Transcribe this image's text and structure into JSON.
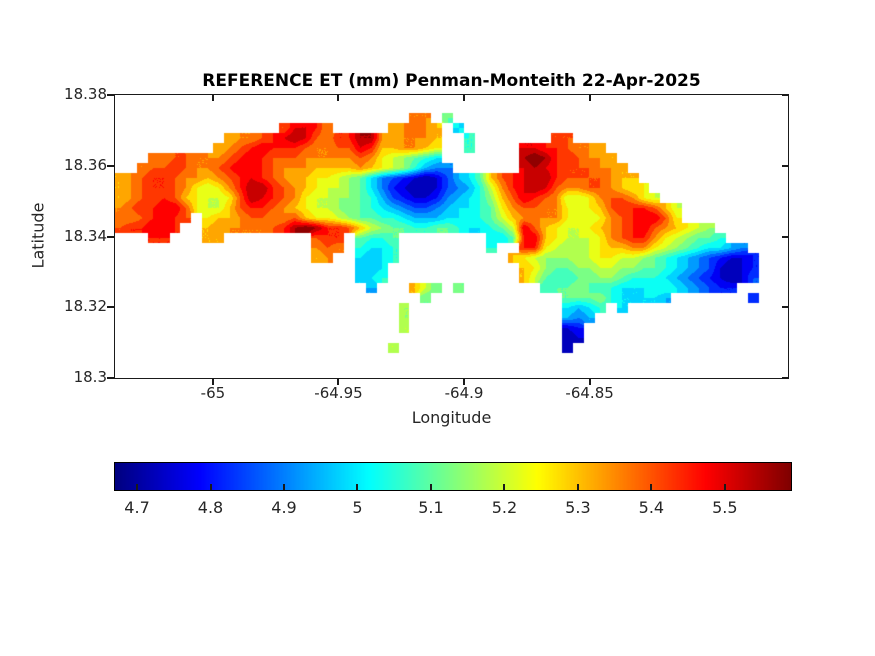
{
  "figure": {
    "background": "#ffffff"
  },
  "chart_data": {
    "type": "heatmap",
    "subtype": "filled-contour-geographic-map",
    "title": "REFERENCE ET (mm) Penman-Monteith 22-Apr-2025",
    "xlabel": "Longitude",
    "ylabel": "Latitude",
    "xlim": [
      -65.039,
      -64.771
    ],
    "ylim": [
      18.3,
      18.38
    ],
    "x_ticks": [
      {
        "v": -65,
        "label": "-65"
      },
      {
        "v": -64.95,
        "label": "-64.95"
      },
      {
        "v": -64.9,
        "label": "-64.9"
      },
      {
        "v": -64.85,
        "label": "-64.85"
      }
    ],
    "y_ticks": [
      {
        "v": 18.38,
        "label": "18.38"
      },
      {
        "v": 18.36,
        "label": "18.36"
      },
      {
        "v": 18.34,
        "label": "18.34"
      },
      {
        "v": 18.32,
        "label": "18.32"
      },
      {
        "v": 18.3,
        "label": "18.3"
      }
    ],
    "colormap": "jet",
    "caxis": [
      4.67,
      5.59
    ],
    "contour_interval": 0.05,
    "colorbar": {
      "orientation": "horizontal",
      "ticks": [
        {
          "v": 4.7,
          "label": "4.7"
        },
        {
          "v": 4.8,
          "label": "4.8"
        },
        {
          "v": 4.9,
          "label": "4.9"
        },
        {
          "v": 5.0,
          "label": "5"
        },
        {
          "v": 5.1,
          "label": "5.1"
        },
        {
          "v": 5.2,
          "label": "5.2"
        },
        {
          "v": 5.3,
          "label": "5.3"
        },
        {
          "v": 5.4,
          "label": "5.4"
        },
        {
          "v": 5.5,
          "label": "5.5"
        }
      ]
    },
    "grid": {
      "description": "Reference ET (mm) over St. Thomas USVI; '.' = ocean/no data; value = 4.65 + 0.05 * index of char in '0123456789ABCDEFGHIJ'",
      "encoding": "0123456789ABCDEFGHIJ",
      "base_value": 4.65,
      "step": 0.05,
      "ncols": 60,
      "nrows": 24,
      "lon_extent": [
        -65.039,
        -64.7784
      ],
      "lat_extent": [
        18.3749,
        18.3071
      ],
      "rows": [
        "...........................EE.9.............................",
        "...............FHHGE.....DEFED.7............................",
        "..........DEEFGHIHFEGGIIEDEEED..8.......FF..................",
        ".........DEFGHGGGFEEFFHGDDEEDC..8....HHGGFEED...............",
        "...EEFFEEEFGHGFFFEEEEEFECBA987.......IJIGGFEED..............",
        "..EFFGFEEFGHHGFEEEDDDDEDCBA8655......HIHGFFFEED.............",
        "DEFGGFEEDEFGHGFEDDCCBA975432124679DFGHIIGFFFFEDD............",
        "DEFGGFECBCEGIIGFEDCBBA975321124568BEGHIHFEEFFEDCC...........",
        "DEFFGFDCBBCFIHGFECBBAA986432235678ADFHGFEBBCEFFECB..........",
        "EFGGHHFCBBDFGGFEDCBBA99876544567789CEFFEECBCDFGGGFDB........",
        "EEFGHGF.CDDEFFEEFDCCBA9988766677889BDEEEECBBCEFGHHFC........",
        "FGGHHG..DEEEEEFGIJIGGFDBA99889987789BHFDCBBCDEFGHFEDCBA.....",
        "...GG...DD........FGG.9889........779GHDCBBBCEFGGECBA998....",
        "..................EFE.8778........8..GGCBAABCDDEECBA987765..",
        "..................DE..7678..........DCBAAABBCCBBA9876543223.",
        "......................667............DCA99AABBAA99876542123.",
        "......................778............DB98899AA9888765432124.",
        ".......................6...DB9.9.......899A98877788765433...",
        "............................9............999A877776.......3.",
        "..........................A..............7678.7.............",
        "..........................A..............656................",
        "..........................B..............23.................",
        ".........................................12.................",
        ".........................B...............2.................."
      ]
    }
  }
}
